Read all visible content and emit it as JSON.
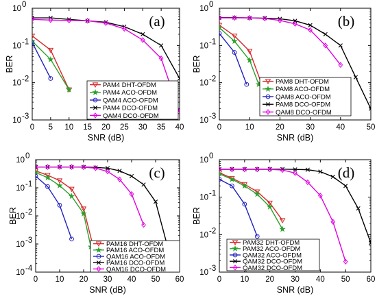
{
  "chart_data": [
    {
      "type": "line",
      "panel_label": "(a)",
      "xlabel": "SNR (dB)",
      "ylabel": "BER",
      "xlim": [
        0,
        40
      ],
      "ylim": [
        0.001,
        1
      ],
      "log_y": true,
      "grid": false,
      "legend_position": "bottom-right",
      "xticks": [
        "0",
        "5",
        "10",
        "15",
        "20",
        "25",
        "30",
        "35",
        "40"
      ],
      "yticks": [
        "10-3",
        "10-2",
        "10-1",
        "100"
      ],
      "series": [
        {
          "name": "PAM4 DHT-OFDM",
          "color": "#d62728",
          "marker": "triangle-down",
          "x": [
            0,
            5,
            10
          ],
          "y": [
            0.18,
            0.075,
            0.0065
          ]
        },
        {
          "name": "PAM4 ACO-OFDM",
          "color": "#2ca02c",
          "marker": "star",
          "x": [
            0,
            5,
            10
          ],
          "y": [
            0.13,
            0.042,
            0.0065
          ]
        },
        {
          "name": "QAM4 ACO-OFDM",
          "color": "#1f1fbf",
          "marker": "circle",
          "x": [
            0,
            5
          ],
          "y": [
            0.12,
            0.013
          ]
        },
        {
          "name": "PAM4 DCO-OFDM",
          "color": "#000000",
          "marker": "x",
          "x": [
            0,
            5,
            10,
            15,
            20,
            25,
            30,
            35,
            40
          ],
          "y": [
            0.55,
            0.55,
            0.5,
            0.46,
            0.42,
            0.32,
            0.2,
            0.1,
            0.013
          ]
        },
        {
          "name": "QAM4 DCO-OFDM",
          "color": "#e000e0",
          "marker": "diamond",
          "x": [
            0,
            5,
            10,
            15,
            20,
            25,
            30,
            35,
            40
          ],
          "y": [
            0.5,
            0.48,
            0.47,
            0.46,
            0.4,
            0.28,
            0.14,
            0.045,
            0.0016
          ]
        }
      ]
    },
    {
      "type": "line",
      "panel_label": "(b)",
      "xlabel": "SNR (dB)",
      "ylabel": "BER",
      "xlim": [
        0,
        50
      ],
      "ylim": [
        0.001,
        1
      ],
      "log_y": true,
      "grid": false,
      "legend_position": "bottom-right",
      "xticks": [
        "0",
        "10",
        "20",
        "30",
        "40",
        "50"
      ],
      "yticks": [
        "10-3",
        "10-2",
        "10-1",
        "100"
      ],
      "series": [
        {
          "name": "PAM8 DHT-OFDM",
          "color": "#d62728",
          "marker": "triangle-down",
          "x": [
            0,
            5,
            10,
            14
          ],
          "y": [
            0.35,
            0.18,
            0.07,
            0.009
          ]
        },
        {
          "name": "PAM8 ACO-OFDM",
          "color": "#2ca02c",
          "marker": "star",
          "x": [
            0,
            5,
            10,
            13
          ],
          "y": [
            0.3,
            0.13,
            0.04,
            0.009
          ]
        },
        {
          "name": "QAM8 ACO-OFDM",
          "color": "#1f1fbf",
          "marker": "circle",
          "x": [
            0,
            5,
            9
          ],
          "y": [
            0.21,
            0.065,
            0.009
          ]
        },
        {
          "name": "PAM8 DCO-OFDM",
          "color": "#000000",
          "marker": "x",
          "x": [
            0,
            5,
            10,
            15,
            20,
            25,
            30,
            35,
            40,
            45,
            50
          ],
          "y": [
            0.56,
            0.56,
            0.55,
            0.54,
            0.52,
            0.46,
            0.35,
            0.2,
            0.1,
            0.014,
            0.002
          ]
        },
        {
          "name": "QAM8 DCO-OFDM",
          "color": "#e000e0",
          "marker": "diamond",
          "x": [
            0,
            5,
            10,
            15,
            20,
            25,
            30,
            35,
            40
          ],
          "y": [
            0.55,
            0.55,
            0.55,
            0.53,
            0.47,
            0.38,
            0.26,
            0.1,
            0.03
          ]
        }
      ]
    },
    {
      "type": "line",
      "panel_label": "(c)",
      "xlabel": "SNR (dB)",
      "ylabel": "BER",
      "xlim": [
        0,
        60
      ],
      "ylim": [
        0.0001,
        1
      ],
      "log_y": true,
      "grid": false,
      "legend_position": "bottom-right",
      "xticks": [
        "0",
        "10",
        "20",
        "30",
        "40",
        "50",
        "60"
      ],
      "yticks": [
        "10-4",
        "10-3",
        "10-2",
        "10-1",
        "100"
      ],
      "series": [
        {
          "name": "PAM16 DHT-OFDM",
          "color": "#d62728",
          "marker": "triangle-down",
          "x": [
            0,
            5,
            10,
            15,
            20,
            24
          ],
          "y": [
            0.4,
            0.28,
            0.18,
            0.09,
            0.018,
            0.0008
          ]
        },
        {
          "name": "PAM16 ACO-OFDM",
          "color": "#2ca02c",
          "marker": "star",
          "x": [
            0,
            5,
            10,
            15,
            20,
            23
          ],
          "y": [
            0.35,
            0.23,
            0.12,
            0.05,
            0.012,
            0.0008
          ]
        },
        {
          "name": "QAM16 ACO-OFDM",
          "color": "#1f1fbf",
          "marker": "circle",
          "x": [
            0,
            5,
            10,
            15
          ],
          "y": [
            0.26,
            0.11,
            0.024,
            0.0015
          ]
        },
        {
          "name": "PAM16 DCO-OFDM",
          "color": "#000000",
          "marker": "x",
          "x": [
            0,
            5,
            10,
            15,
            20,
            25,
            30,
            35,
            40,
            45,
            50,
            55
          ],
          "y": [
            0.55,
            0.55,
            0.55,
            0.55,
            0.55,
            0.53,
            0.5,
            0.4,
            0.26,
            0.13,
            0.032,
            0.0008
          ]
        },
        {
          "name": "QAM16 DCO-OFDM",
          "color": "#e000e0",
          "marker": "diamond",
          "x": [
            0,
            5,
            10,
            15,
            20,
            25,
            30,
            35,
            40,
            45
          ],
          "y": [
            0.55,
            0.55,
            0.55,
            0.55,
            0.54,
            0.5,
            0.38,
            0.2,
            0.06,
            0.0048
          ]
        }
      ]
    },
    {
      "type": "line",
      "panel_label": "(d)",
      "xlabel": "SNR (dB)",
      "ylabel": "BER",
      "xlim": [
        0,
        60
      ],
      "ylim": [
        0.001,
        1
      ],
      "log_y": true,
      "grid": false,
      "legend_position": "bottom-right",
      "xticks": [
        "0",
        "10",
        "20",
        "30",
        "40",
        "50",
        "60"
      ],
      "yticks": [
        "10-3",
        "10-2",
        "10-1",
        "100"
      ],
      "series": [
        {
          "name": "PAM32 DHT-OFDM",
          "color": "#d62728",
          "marker": "triangle-down",
          "x": [
            0,
            5,
            10,
            15,
            20,
            25
          ],
          "y": [
            0.45,
            0.32,
            0.22,
            0.14,
            0.07,
            0.024
          ]
        },
        {
          "name": "PAM32 ACO-OFDM",
          "color": "#2ca02c",
          "marker": "star",
          "x": [
            0,
            5,
            10,
            15,
            20,
            25
          ],
          "y": [
            0.42,
            0.3,
            0.2,
            0.12,
            0.055,
            0.014
          ]
        },
        {
          "name": "QAM32 ACO-OFDM",
          "color": "#1f1fbf",
          "marker": "circle",
          "x": [
            0,
            5,
            10,
            15
          ],
          "y": [
            0.3,
            0.2,
            0.065,
            0.009
          ]
        },
        {
          "name": "QAM32 DCO-OFDM",
          "color": "#000000",
          "marker": "x",
          "x": [
            0,
            5,
            10,
            15,
            20,
            25,
            30,
            35,
            40,
            45,
            50,
            55,
            60
          ],
          "y": [
            0.56,
            0.56,
            0.56,
            0.56,
            0.56,
            0.56,
            0.55,
            0.54,
            0.48,
            0.35,
            0.2,
            0.05,
            0.006
          ]
        },
        {
          "name": "QAM32 DCO-OFDM",
          "color": "#e000e0",
          "marker": "diamond",
          "x": [
            0,
            5,
            10,
            15,
            20,
            25,
            30,
            35,
            40,
            45,
            50
          ],
          "y": [
            0.55,
            0.55,
            0.55,
            0.55,
            0.55,
            0.53,
            0.44,
            0.25,
            0.11,
            0.022,
            0.0019
          ]
        }
      ]
    }
  ]
}
